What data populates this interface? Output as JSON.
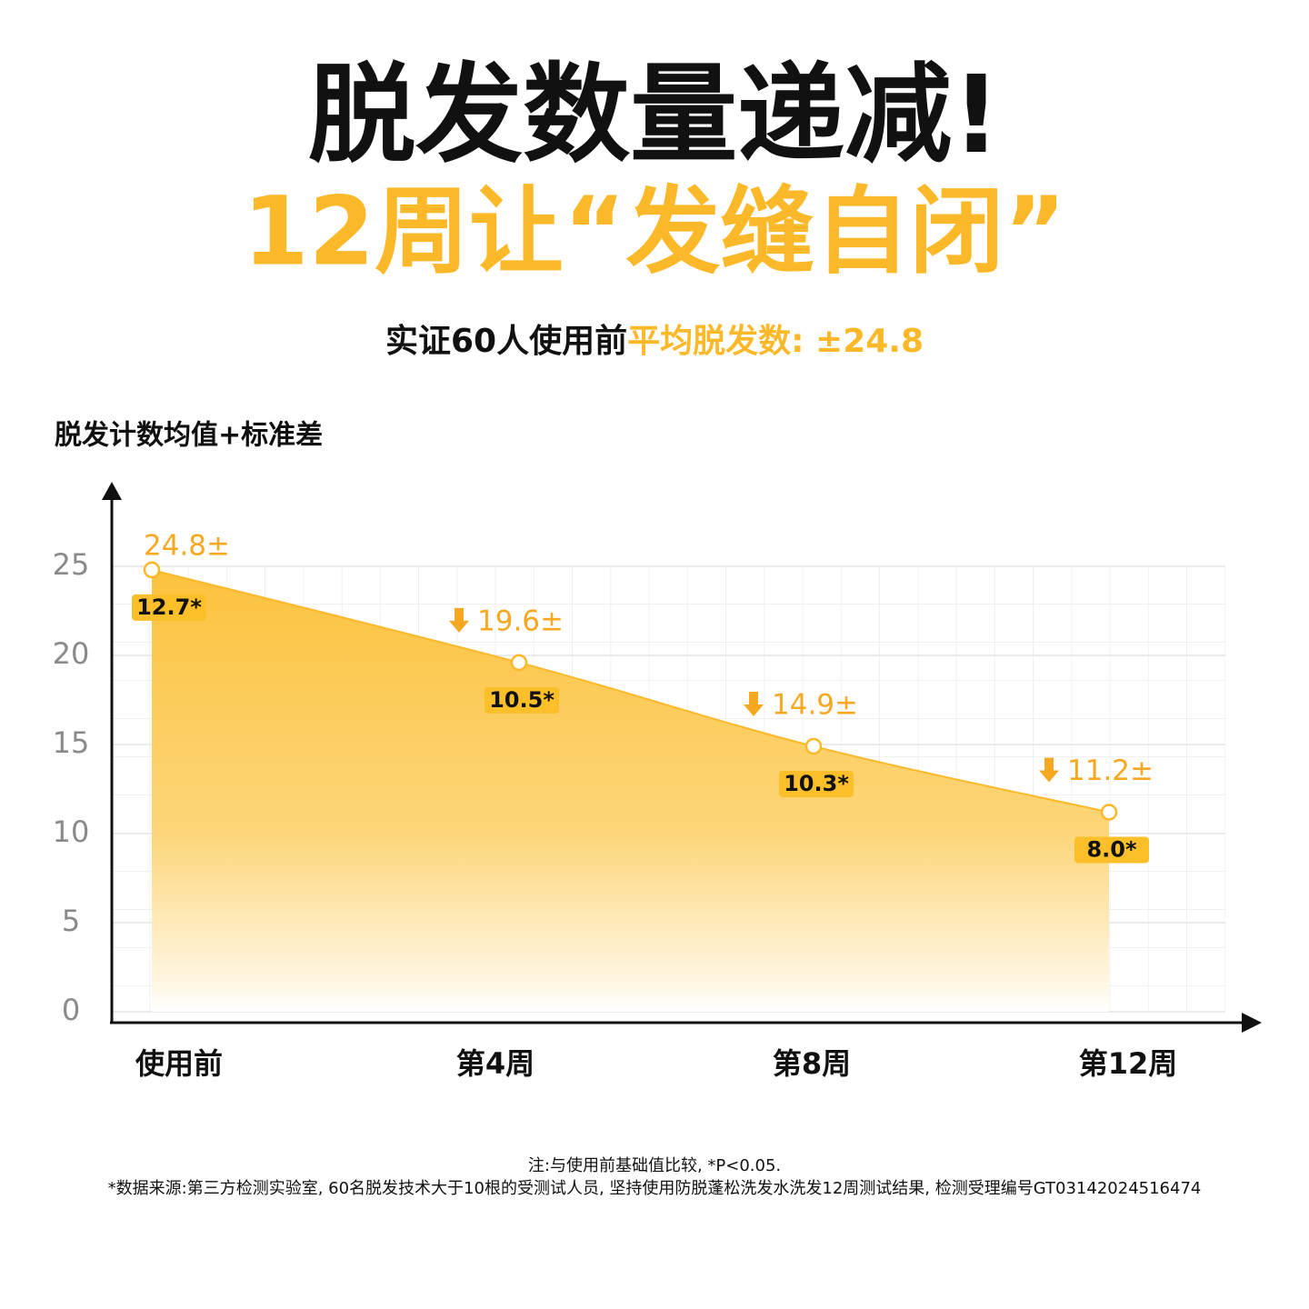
{
  "title": "脱发数量递减!",
  "subtitle": "12周让“发缝自闭”",
  "summary": {
    "prefix": "实证60人使用前",
    "highlight": "平均脱发数: ±24.8"
  },
  "chart_data": {
    "type": "area",
    "y_label": "脱发计数均值+标准差",
    "categories": [
      "使用前",
      "第4周",
      "第8周",
      "第12周"
    ],
    "values": [
      24.8,
      19.6,
      14.9,
      11.2
    ],
    "value_labels": [
      "24.8±",
      "19.6±",
      "14.9±",
      "11.2±"
    ],
    "errors": [
      12.7,
      10.5,
      10.3,
      8.0
    ],
    "error_labels": [
      "12.7*",
      "10.5*",
      "10.3*",
      "8.0*"
    ],
    "color": "#fbb829",
    "ylim": [
      0,
      25
    ],
    "yticks": [
      0,
      5,
      10,
      15,
      20,
      25
    ],
    "grid": true
  },
  "notes": [
    "注:与使用前基础值比较, *P<0.05.",
    "*数据来源:第三方检测实验室, 60名脱发技术大于10根的受测试人员, 坚持使用防脱蓬松洗发水洗发12周测试结果, 检测受理编号GT03142024516474"
  ]
}
